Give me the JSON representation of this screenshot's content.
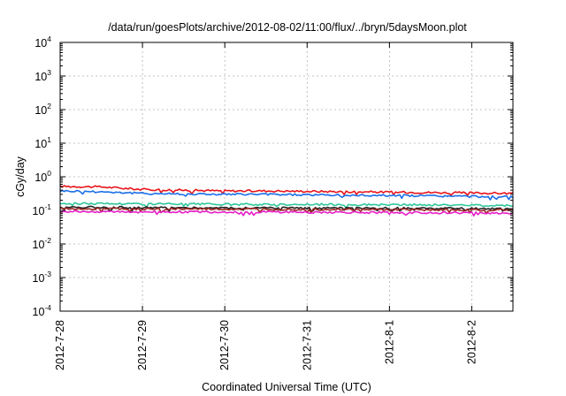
{
  "chart_data": {
    "type": "line",
    "title": "/data/run/goesPlots/archive/2012-08-02/11:00/flux/../bryn/5daysMoon.plot",
    "xlabel": "Coordinated Universal Time (UTC)",
    "ylabel": "cGy/day",
    "yscale": "log",
    "grid": true,
    "x_tick_labels": [
      "2012-7-28",
      "2012-7-29",
      "2012-7-30",
      "2012-7-31",
      "2012-8-1",
      "2012-8-2"
    ],
    "x_range_days": [
      0,
      5.5
    ],
    "ylim": [
      0.0001,
      10000
    ],
    "y_tick_labels": [
      {
        "base": "10",
        "exp": "4"
      },
      {
        "base": "10",
        "exp": "3"
      },
      {
        "base": "10",
        "exp": "2"
      },
      {
        "base": "10",
        "exp": "1"
      },
      {
        "base": "10",
        "exp": "0"
      },
      {
        "base": "10",
        "exp": "-1"
      },
      {
        "base": "10",
        "exp": "-2"
      },
      {
        "base": "10",
        "exp": "-3"
      },
      {
        "base": "10",
        "exp": "-4"
      }
    ],
    "series": [
      {
        "color": "#e8141c",
        "x": [
          0,
          0.5,
          1,
          1.5,
          2,
          2.5,
          3,
          3.5,
          4,
          4.5,
          5,
          5.5
        ],
        "y": [
          0.52,
          0.5,
          0.42,
          0.4,
          0.38,
          0.38,
          0.37,
          0.36,
          0.35,
          0.34,
          0.33,
          0.32
        ]
      },
      {
        "color": "#1a6fe8",
        "x": [
          0,
          0.5,
          1,
          1.5,
          2,
          2.5,
          3,
          3.5,
          4,
          4.5,
          5,
          5.5
        ],
        "y": [
          0.38,
          0.36,
          0.32,
          0.31,
          0.3,
          0.3,
          0.29,
          0.28,
          0.28,
          0.27,
          0.26,
          0.25
        ]
      },
      {
        "color": "#2ec79a",
        "x": [
          0,
          0.5,
          1,
          1.5,
          2,
          2.5,
          3,
          3.5,
          4,
          4.5,
          5,
          5.5
        ],
        "y": [
          0.16,
          0.16,
          0.155,
          0.155,
          0.15,
          0.15,
          0.15,
          0.148,
          0.147,
          0.145,
          0.143,
          0.14
        ]
      },
      {
        "color": "#222222",
        "x": [
          0,
          0.5,
          1,
          1.5,
          2,
          2.5,
          3,
          3.5,
          4,
          4.5,
          5,
          5.5
        ],
        "y": [
          0.125,
          0.125,
          0.12,
          0.12,
          0.118,
          0.118,
          0.117,
          0.116,
          0.115,
          0.114,
          0.113,
          0.112
        ]
      },
      {
        "color": "#9c2525",
        "x": [
          0,
          0.5,
          1,
          1.5,
          2,
          2.5,
          3,
          3.5,
          4,
          4.5,
          5,
          5.5
        ],
        "y": [
          0.112,
          0.112,
          0.11,
          0.11,
          0.108,
          0.108,
          0.107,
          0.106,
          0.105,
          0.104,
          0.103,
          0.102
        ]
      },
      {
        "color": "#e81ec8",
        "x": [
          0,
          0.5,
          1,
          1.5,
          2,
          2.5,
          3,
          3.5,
          4,
          4.5,
          5,
          5.5
        ],
        "y": [
          0.092,
          0.092,
          0.09,
          0.09,
          0.089,
          0.089,
          0.088,
          0.087,
          0.086,
          0.085,
          0.084,
          0.083
        ]
      }
    ]
  }
}
